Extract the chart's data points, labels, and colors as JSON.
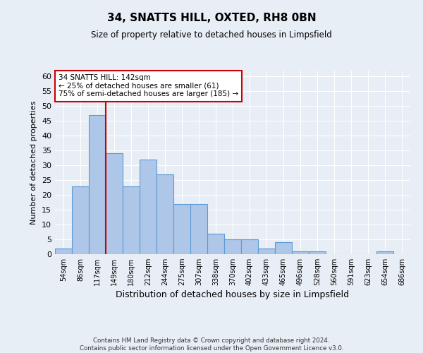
{
  "title": "34, SNATTS HILL, OXTED, RH8 0BN",
  "subtitle": "Size of property relative to detached houses in Limpsfield",
  "xlabel": "Distribution of detached houses by size in Limpsfield",
  "ylabel": "Number of detached properties",
  "bar_labels": [
    "54sqm",
    "86sqm",
    "117sqm",
    "149sqm",
    "180sqm",
    "212sqm",
    "244sqm",
    "275sqm",
    "307sqm",
    "338sqm",
    "370sqm",
    "402sqm",
    "433sqm",
    "465sqm",
    "496sqm",
    "528sqm",
    "560sqm",
    "591sqm",
    "623sqm",
    "654sqm",
    "686sqm"
  ],
  "bar_values": [
    2,
    23,
    47,
    34,
    23,
    32,
    27,
    17,
    17,
    7,
    5,
    5,
    2,
    4,
    1,
    1,
    0,
    0,
    0,
    1,
    0
  ],
  "bar_color": "#aec6e8",
  "bar_edge_color": "#5b9bd5",
  "ylim": [
    0,
    62
  ],
  "yticks": [
    0,
    5,
    10,
    15,
    20,
    25,
    30,
    35,
    40,
    45,
    50,
    55,
    60
  ],
  "vline_x_idx": 2.5,
  "vline_color": "#cc0000",
  "annotation_text": "34 SNATTS HILL: 142sqm\n← 25% of detached houses are smaller (61)\n75% of semi-detached houses are larger (185) →",
  "annotation_box_color": "#ffffff",
  "annotation_box_edge": "#cc0000",
  "footer_text": "Contains HM Land Registry data © Crown copyright and database right 2024.\nContains public sector information licensed under the Open Government Licence v3.0.",
  "bg_color": "#e8eef5",
  "grid_color": "#ffffff"
}
